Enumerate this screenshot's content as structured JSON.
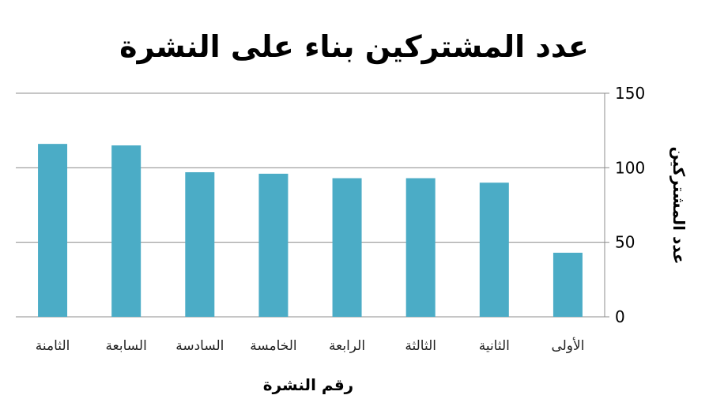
{
  "chart_data": {
    "type": "bar",
    "title": "عدد المشتركين بناء على النشرة",
    "xlabel": "رقم النشرة",
    "ylabel": "عدد المشتركين",
    "categories": [
      "الأولى",
      "الثانية",
      "الثالثة",
      "الرابعة",
      "الخامسة",
      "السادسة",
      "السابعة",
      "الثامنة"
    ],
    "values": [
      43,
      90,
      93,
      93,
      96,
      97,
      115,
      116
    ],
    "ylim": [
      0,
      150
    ],
    "yticks": [
      0,
      50,
      100,
      150
    ],
    "x_direction": "right-to-left",
    "y_axis_side": "right",
    "grid": true,
    "bar_color": "#4bacc6",
    "grid_color": "#8c8c8c"
  }
}
